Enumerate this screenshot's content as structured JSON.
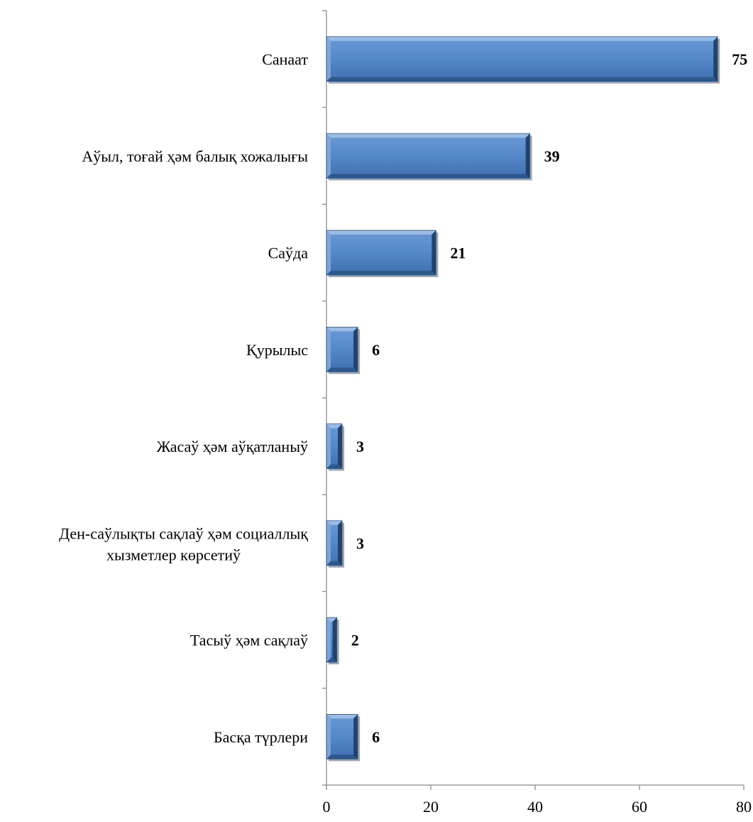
{
  "chart_data": {
    "type": "bar",
    "orientation": "horizontal",
    "title": "",
    "xlabel": "",
    "ylabel": "",
    "categories": [
      "Санаат",
      "Аўыл, тоғай ҳәм балық хожалығы",
      "Саўда",
      "Қурылыс",
      "Жасаў ҳәм аўқатланыў",
      "Ден-саўлықты сақлаў ҳәм социаллық хызметлер көрсетиў",
      "Тасыў ҳәм сақлаў",
      "Басқа түрлери"
    ],
    "values": [
      75,
      39,
      21,
      6,
      3,
      3,
      2,
      6
    ],
    "data_labels": [
      "75",
      "39",
      "21",
      "6",
      "3",
      "3",
      "2",
      "6"
    ],
    "xlim": [
      0,
      80
    ],
    "x_ticks": [
      "0",
      "20",
      "40",
      "60",
      "80"
    ],
    "grid": false,
    "legend": "none",
    "bar_color": "#4f81bd"
  }
}
